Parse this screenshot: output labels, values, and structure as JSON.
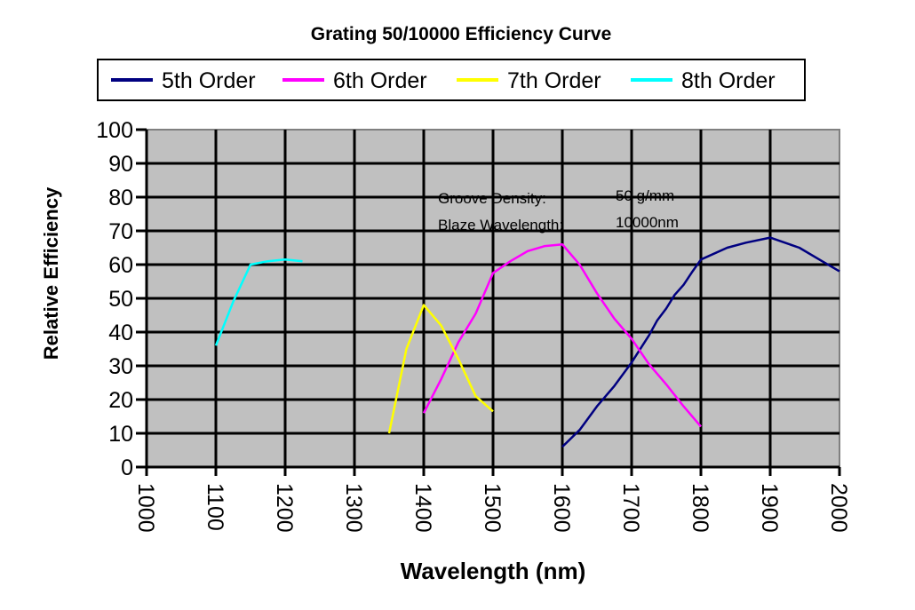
{
  "chart_data": {
    "type": "line",
    "title": "Grating 50/10000 Efficiency Curve",
    "xlabel": "Wavelength (nm)",
    "ylabel": "Relative Efficiency",
    "xlim": [
      1000,
      2000
    ],
    "ylim": [
      0,
      100
    ],
    "xticks": [
      1000,
      1100,
      1200,
      1300,
      1400,
      1500,
      1600,
      1700,
      1800,
      1900,
      2000
    ],
    "yticks": [
      0,
      10,
      20,
      30,
      40,
      50,
      60,
      70,
      80,
      90,
      100
    ],
    "grid": true,
    "plot_background": "#c0c0c0",
    "legend_position": "top",
    "annotations": [
      {
        "label": "Groove Density:",
        "value": "50 g/mm"
      },
      {
        "label": "Blaze Wavelength:",
        "value": "10000nm"
      }
    ],
    "series": [
      {
        "name": "5th Order",
        "color": "#000080",
        "x": [
          1600,
          1625,
          1650,
          1675,
          1700,
          1725,
          1737,
          1750,
          1762,
          1775,
          1788,
          1800,
          1838,
          1865,
          1900,
          1942,
          1975,
          2000
        ],
        "y": [
          6,
          11,
          18,
          24,
          31,
          39,
          43.5,
          47,
          51,
          54,
          58,
          61.5,
          65,
          66.5,
          68,
          65,
          61,
          58
        ]
      },
      {
        "name": "6th Order",
        "color": "#ff00ff",
        "x": [
          1400,
          1425,
          1450,
          1475,
          1500,
          1525,
          1550,
          1575,
          1600,
          1625,
          1650,
          1675,
          1700,
          1725,
          1750,
          1775,
          1800
        ],
        "y": [
          16,
          26,
          37,
          45.5,
          57.5,
          61,
          64,
          65.5,
          66,
          60,
          51.5,
          44,
          38,
          30.5,
          24.5,
          18,
          12
        ]
      },
      {
        "name": "7th Order",
        "color": "#ffff00",
        "x": [
          1350,
          1375,
          1400,
          1425,
          1450,
          1475,
          1500
        ],
        "y": [
          10,
          35,
          48,
          42,
          32,
          21,
          16.5
        ]
      },
      {
        "name": "8th Order",
        "color": "#00ffff",
        "x": [
          1100,
          1125,
          1150,
          1175,
          1200,
          1225
        ],
        "y": [
          36,
          49,
          60,
          61,
          61.5,
          61
        ]
      }
    ]
  }
}
